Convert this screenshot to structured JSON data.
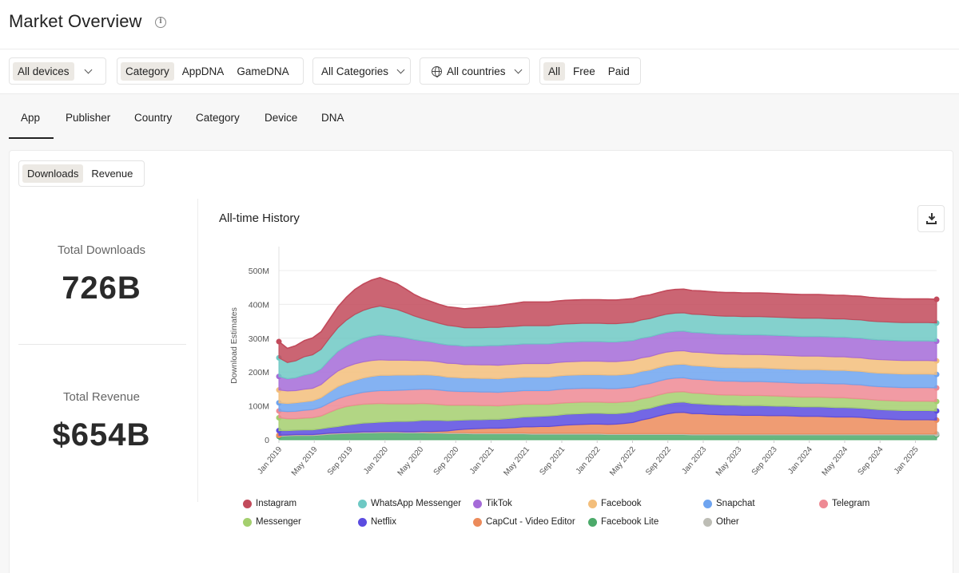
{
  "header": {
    "title": "Market Overview",
    "info_icon": "info-icon"
  },
  "filters": {
    "device": {
      "selected": "All devices"
    },
    "taxonomy": {
      "options": [
        "Category",
        "AppDNA",
        "GameDNA"
      ],
      "selected": "Category"
    },
    "categories": {
      "selected": "All Categories"
    },
    "countries": {
      "selected": "All countries",
      "icon": "globe-icon"
    },
    "pricing": {
      "options": [
        "All",
        "Free",
        "Paid"
      ],
      "selected": "All"
    }
  },
  "tabs": [
    "App",
    "Publisher",
    "Country",
    "Category",
    "Device",
    "DNA"
  ],
  "active_tab": "App",
  "metric_toggle": {
    "options": [
      "Downloads",
      "Revenue"
    ],
    "selected": "Downloads"
  },
  "stats": {
    "downloads_label": "Total Downloads",
    "downloads_value": "726B",
    "revenue_label": "Total Revenue",
    "revenue_value": "$654B"
  },
  "chart": {
    "title": "All-time History",
    "download_icon": "download-icon"
  },
  "chart_data": {
    "type": "area",
    "stacked": true,
    "ylabel": "Download Estimates",
    "ylim": [
      0,
      500
    ],
    "yticks": [
      0,
      100,
      200,
      300,
      400,
      500
    ],
    "ytick_labels": [
      "0",
      "100M",
      "200M",
      "300M",
      "400M",
      "500M"
    ],
    "x_ticks": [
      "Jan 2019",
      "May 2019",
      "Sep 2019",
      "Jan 2020",
      "May 2020",
      "Sep 2020",
      "Jan 2021",
      "May 2021",
      "Sep 2021",
      "Jan 2022",
      "May 2022",
      "Sep 2022",
      "Jan 2023",
      "May 2023",
      "Sep 2023",
      "Jan 2024",
      "May 2024",
      "Sep 2024",
      "Jan 2025"
    ],
    "grid": "horizontal",
    "legend_position": "bottom",
    "series": [
      {
        "name": "Facebook Lite",
        "color": "#4caa6a",
        "values": [
          10,
          11,
          12,
          12,
          12,
          14,
          16,
          17,
          18,
          19,
          20,
          20,
          21,
          21,
          21,
          20,
          20,
          20,
          19,
          19,
          18,
          18,
          18,
          17,
          17,
          17,
          17,
          17,
          17,
          17,
          16,
          16,
          16,
          16,
          16,
          16,
          16,
          16,
          16,
          15,
          15,
          15,
          15,
          15,
          15,
          15,
          15,
          15,
          15,
          14,
          14,
          14,
          14,
          14,
          14,
          14,
          14,
          14,
          14,
          14,
          14,
          14,
          14,
          14,
          14,
          14,
          14,
          14,
          14,
          14,
          14,
          14,
          14,
          14,
          14,
          14,
          14,
          14,
          14
        ]
      },
      {
        "name": "Other",
        "color": "#bdbdb5",
        "values": [
          3,
          3,
          3,
          3,
          3,
          3,
          3,
          3,
          3,
          3,
          3,
          3,
          3,
          3,
          3,
          3,
          3,
          3,
          3,
          3,
          3,
          3,
          3,
          3,
          3,
          3,
          3,
          3,
          3,
          3,
          3,
          3,
          3,
          3,
          3,
          3,
          3,
          3,
          3,
          3,
          3,
          3,
          3,
          3,
          3,
          3,
          3,
          3,
          3,
          3,
          3,
          3,
          3,
          3,
          3,
          3,
          3,
          3,
          3,
          3,
          3,
          3,
          3,
          3,
          3,
          3,
          3,
          3,
          3,
          3,
          3,
          3,
          3,
          3,
          3,
          3,
          3,
          3,
          3
        ]
      },
      {
        "name": "CapCut - Video Editor",
        "color": "#ec8b5b",
        "values": [
          0,
          0,
          0,
          0,
          0,
          0,
          0,
          0,
          0,
          0,
          0,
          0,
          0,
          0,
          0,
          0,
          0,
          1,
          2,
          3,
          5,
          8,
          10,
          12,
          13,
          14,
          14,
          15,
          16,
          18,
          19,
          20,
          20,
          22,
          24,
          25,
          26,
          27,
          27,
          27,
          28,
          30,
          33,
          40,
          45,
          52,
          58,
          62,
          63,
          60,
          60,
          58,
          57,
          56,
          56,
          55,
          55,
          55,
          54,
          54,
          54,
          53,
          52,
          52,
          52,
          51,
          50,
          50,
          50,
          49,
          47,
          45,
          44,
          43,
          42,
          42,
          42,
          42,
          41
        ]
      },
      {
        "name": "Netflix",
        "color": "#5b4ce0",
        "values": [
          14,
          13,
          13,
          14,
          14,
          15,
          17,
          19,
          22,
          24,
          26,
          27,
          28,
          29,
          30,
          31,
          32,
          33,
          33,
          32,
          30,
          28,
          27,
          27,
          26,
          26,
          26,
          27,
          28,
          29,
          30,
          30,
          31,
          31,
          32,
          32,
          32,
          32,
          32,
          32,
          31,
          31,
          31,
          31,
          30,
          30,
          30,
          30,
          30,
          30,
          29,
          29,
          29,
          29,
          29,
          29,
          29,
          29,
          29,
          28,
          28,
          28,
          28,
          28,
          28,
          28,
          28,
          28,
          27,
          27,
          27,
          27,
          27,
          27,
          27,
          27,
          27,
          27,
          27
        ]
      },
      {
        "name": "Messenger",
        "color": "#a4cf6e",
        "values": [
          38,
          35,
          34,
          35,
          36,
          38,
          45,
          52,
          55,
          56,
          56,
          56,
          55,
          53,
          52,
          52,
          51,
          50,
          49,
          47,
          46,
          45,
          44,
          43,
          42,
          41,
          40,
          40,
          39,
          38,
          37,
          36,
          35,
          35,
          34,
          34,
          34,
          33,
          33,
          33,
          33,
          33,
          32,
          32,
          32,
          32,
          32,
          31,
          31,
          31,
          31,
          31,
          30,
          30,
          30,
          30,
          30,
          30,
          30,
          30,
          29,
          29,
          29,
          29,
          29,
          29,
          29,
          29,
          28,
          28,
          28,
          28,
          28,
          28,
          28,
          28,
          28,
          28,
          28
        ]
      },
      {
        "name": "Telegram",
        "color": "#ee8a94",
        "values": [
          20,
          21,
          22,
          23,
          24,
          26,
          28,
          30,
          31,
          33,
          35,
          37,
          38,
          39,
          40,
          41,
          42,
          42,
          43,
          43,
          42,
          41,
          40,
          40,
          40,
          40,
          40,
          40,
          40,
          40,
          40,
          40,
          40,
          41,
          41,
          41,
          41,
          41,
          41,
          41,
          41,
          41,
          41,
          41,
          41,
          41,
          41,
          41,
          41,
          41,
          41,
          41,
          41,
          41,
          41,
          41,
          41,
          41,
          41,
          41,
          41,
          41,
          41,
          41,
          41,
          41,
          41,
          41,
          41,
          41,
          40,
          40,
          40,
          40,
          40,
          40,
          40,
          40,
          40
        ]
      },
      {
        "name": "Snapchat",
        "color": "#6ea4f0",
        "values": [
          24,
          24,
          25,
          25,
          26,
          28,
          32,
          36,
          38,
          40,
          42,
          44,
          45,
          45,
          45,
          44,
          43,
          43,
          42,
          42,
          41,
          41,
          40,
          40,
          40,
          40,
          40,
          40,
          40,
          40,
          40,
          40,
          40,
          40,
          40,
          40,
          40,
          40,
          40,
          40,
          40,
          40,
          40,
          40,
          40,
          40,
          40,
          40,
          40,
          40,
          40,
          40,
          40,
          40,
          40,
          40,
          40,
          40,
          40,
          40,
          40,
          40,
          40,
          40,
          40,
          40,
          40,
          40,
          40,
          40,
          40,
          40,
          40,
          40,
          40,
          40,
          40,
          40,
          40
        ]
      },
      {
        "name": "Facebook",
        "color": "#f3be7b",
        "values": [
          38,
          37,
          36,
          37,
          37,
          39,
          43,
          46,
          48,
          49,
          48,
          47,
          46,
          45,
          44,
          44,
          43,
          42,
          42,
          41,
          41,
          41,
          40,
          40,
          40,
          40,
          40,
          40,
          40,
          40,
          40,
          40,
          40,
          40,
          40,
          40,
          40,
          40,
          40,
          40,
          40,
          40,
          40,
          40,
          40,
          40,
          40,
          40,
          40,
          40,
          40,
          40,
          40,
          40,
          40,
          40,
          40,
          40,
          40,
          40,
          40,
          40,
          40,
          40,
          40,
          40,
          40,
          40,
          40,
          40,
          40,
          40,
          40,
          40,
          40,
          40,
          40,
          40,
          40
        ]
      },
      {
        "name": "TikTok",
        "color": "#a56bd8",
        "values": [
          40,
          36,
          38,
          42,
          44,
          46,
          52,
          58,
          62,
          66,
          70,
          72,
          74,
          72,
          70,
          66,
          62,
          58,
          56,
          54,
          54,
          54,
          54,
          55,
          56,
          57,
          58,
          58,
          58,
          58,
          58,
          58,
          58,
          58,
          58,
          58,
          58,
          58,
          58,
          58,
          58,
          58,
          58,
          58,
          58,
          58,
          58,
          58,
          58,
          58,
          58,
          58,
          58,
          58,
          58,
          58,
          58,
          58,
          58,
          58,
          58,
          58,
          58,
          58,
          58,
          58,
          58,
          58,
          58,
          58,
          58,
          58,
          58,
          58,
          58,
          58,
          58,
          58,
          58
        ]
      },
      {
        "name": "WhatsApp Messenger",
        "color": "#6ec9c4",
        "values": [
          55,
          48,
          50,
          54,
          55,
          58,
          64,
          70,
          76,
          80,
          82,
          84,
          85,
          83,
          80,
          75,
          70,
          66,
          62,
          60,
          58,
          56,
          55,
          54,
          54,
          54,
          54,
          54,
          54,
          54,
          54,
          54,
          54,
          54,
          54,
          54,
          54,
          54,
          54,
          54,
          54,
          54,
          54,
          54,
          54,
          54,
          54,
          54,
          54,
          54,
          54,
          54,
          54,
          54,
          54,
          54,
          54,
          54,
          54,
          54,
          54,
          54,
          54,
          54,
          54,
          54,
          54,
          54,
          54,
          54,
          54,
          54,
          54,
          54,
          54,
          54,
          54,
          54,
          54
        ]
      },
      {
        "name": "Instagram",
        "color": "#c24a5b",
        "values": [
          48,
          42,
          45,
          48,
          50,
          52,
          56,
          62,
          68,
          74,
          78,
          82,
          84,
          80,
          76,
          70,
          64,
          60,
          58,
          56,
          55,
          55,
          56,
          58,
          60,
          62,
          64,
          66,
          68,
          70,
          70,
          70,
          70,
          70,
          70,
          70,
          70,
          70,
          70,
          70,
          70,
          70,
          70,
          70,
          70,
          70,
          70,
          70,
          70,
          70,
          70,
          70,
          70,
          70,
          70,
          70,
          70,
          70,
          70,
          70,
          70,
          70,
          70,
          70,
          70,
          70,
          70,
          70,
          70,
          70,
          70,
          70,
          70,
          70,
          70,
          70,
          70,
          70,
          70
        ]
      }
    ]
  }
}
